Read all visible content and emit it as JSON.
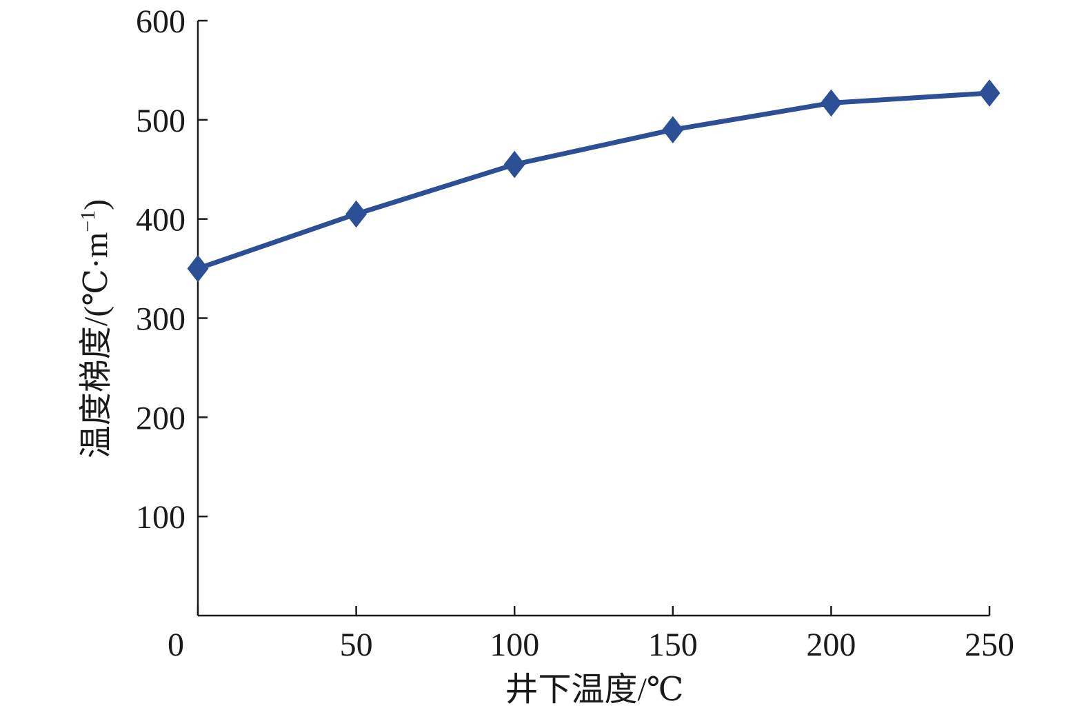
{
  "chart_data": {
    "type": "line",
    "title": "",
    "xlabel": "井下温度/℃",
    "ylabel": "温度梯度/(℃·m",
    "ylabel_superscript": "−1",
    "ylabel_close": ")",
    "xlim": [
      0,
      250
    ],
    "ylim": [
      0,
      600
    ],
    "x_ticks": [
      0,
      50,
      100,
      150,
      200,
      250
    ],
    "y_ticks": [
      100,
      200,
      300,
      400,
      500,
      600
    ],
    "grid": false,
    "legend": "none",
    "series": [
      {
        "color": "#2d4f95",
        "marker": "diamond",
        "x": [
          0,
          50,
          100,
          150,
          200,
          250
        ],
        "y": [
          350,
          405,
          455,
          490,
          517,
          527
        ]
      }
    ]
  }
}
